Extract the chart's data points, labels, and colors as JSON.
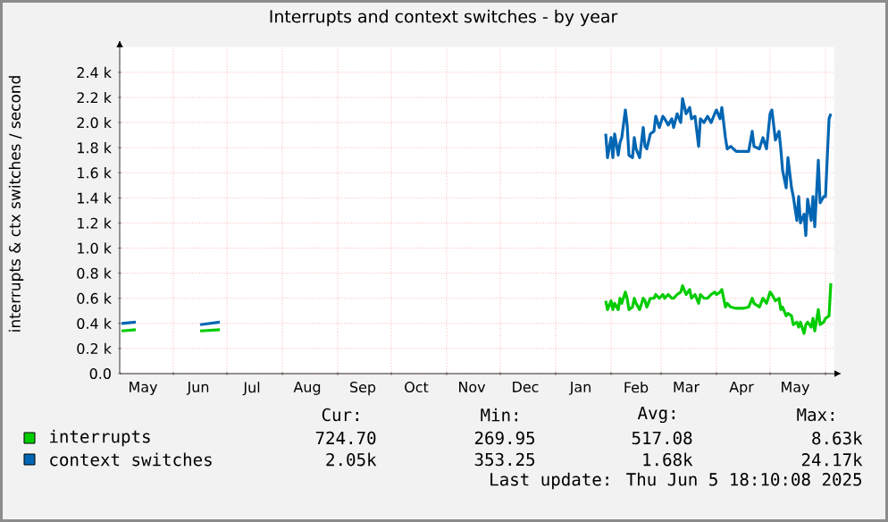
{
  "chart_data": {
    "type": "line",
    "title": "Interrupts and context switches - by year",
    "ylabel": "interrupts & ctx switches / second",
    "xlim": [
      "2024-05-02",
      "2025-06-06"
    ],
    "xticks": [
      {
        "value": "2024-05-15",
        "label": "May"
      },
      {
        "value": "2024-06-01",
        "label": null
      },
      {
        "value": "2024-06-15",
        "label": "Jun"
      },
      {
        "value": "2024-07-01",
        "label": null
      },
      {
        "value": "2024-07-15",
        "label": "Jul"
      },
      {
        "value": "2024-08-01",
        "label": null
      },
      {
        "value": "2024-08-15",
        "label": "Aug"
      },
      {
        "value": "2024-09-01",
        "label": null
      },
      {
        "value": "2024-09-15",
        "label": "Sep"
      },
      {
        "value": "2024-10-01",
        "label": null
      },
      {
        "value": "2024-10-15",
        "label": "Oct"
      },
      {
        "value": "2024-11-01",
        "label": null
      },
      {
        "value": "2024-11-15",
        "label": "Nov"
      },
      {
        "value": "2024-12-01",
        "label": null
      },
      {
        "value": "2024-12-15",
        "label": "Dec"
      },
      {
        "value": "2025-01-01",
        "label": null
      },
      {
        "value": "2025-01-15",
        "label": "Jan"
      },
      {
        "value": "2025-02-01",
        "label": null
      },
      {
        "value": "2025-02-15",
        "label": "Feb"
      },
      {
        "value": "2025-03-01",
        "label": null
      },
      {
        "value": "2025-03-15",
        "label": "Mar"
      },
      {
        "value": "2025-04-01",
        "label": null
      },
      {
        "value": "2025-04-15",
        "label": "Apr"
      },
      {
        "value": "2025-05-01",
        "label": null
      },
      {
        "value": "2025-05-15",
        "label": "May"
      },
      {
        "value": "2025-06-01",
        "label": null
      }
    ],
    "ylim": [
      0,
      2600
    ],
    "yticks": [
      {
        "value": 0,
        "label": "0.0"
      },
      {
        "value": 200,
        "label": "0.2 k"
      },
      {
        "value": 400,
        "label": "0.4 k"
      },
      {
        "value": 600,
        "label": "0.6 k"
      },
      {
        "value": 800,
        "label": "0.8 k"
      },
      {
        "value": 1000,
        "label": "1.0 k"
      },
      {
        "value": 1200,
        "label": "1.2 k"
      },
      {
        "value": 1400,
        "label": "1.4 k"
      },
      {
        "value": 1600,
        "label": "1.6 k"
      },
      {
        "value": 1800,
        "label": "1.8 k"
      },
      {
        "value": 2000,
        "label": "2.0 k"
      },
      {
        "value": 2200,
        "label": "2.2 k"
      },
      {
        "value": 2400,
        "label": "2.4 k"
      }
    ],
    "grid": true,
    "legend": "bottom",
    "marker": "none",
    "line_style": "solid",
    "x": [
      "2024-05-03",
      "2024-05-11",
      "2024-05-20",
      "2024-06-16",
      "2024-06-27",
      "2024-07-15",
      "2025-01-29",
      "2025-01-30",
      "2025-02-01",
      "2025-02-02",
      "2025-02-03",
      "2025-02-05",
      "2025-02-06",
      "2025-02-07",
      "2025-02-09",
      "2025-02-10",
      "2025-02-11",
      "2025-02-13",
      "2025-02-14",
      "2025-02-15",
      "2025-02-17",
      "2025-02-19",
      "2025-02-20",
      "2025-02-21",
      "2025-02-23",
      "2025-02-25",
      "2025-02-26",
      "2025-02-28",
      "2025-03-02",
      "2025-03-03",
      "2025-03-05",
      "2025-03-07",
      "2025-03-08",
      "2025-03-10",
      "2025-03-12",
      "2025-03-13",
      "2025-03-15",
      "2025-03-17",
      "2025-03-18",
      "2025-03-20",
      "2025-03-22",
      "2025-03-23",
      "2025-03-25",
      "2025-03-27",
      "2025-03-29",
      "2025-03-31",
      "2025-04-01",
      "2025-04-03",
      "2025-04-04",
      "2025-04-06",
      "2025-04-07",
      "2025-04-09",
      "2025-04-12",
      "2025-04-16",
      "2025-04-19",
      "2025-04-21",
      "2025-04-22",
      "2025-04-25",
      "2025-04-27",
      "2025-04-29",
      "2025-05-01",
      "2025-05-02",
      "2025-05-04",
      "2025-05-06",
      "2025-05-07",
      "2025-05-08",
      "2025-05-10",
      "2025-05-11",
      "2025-05-13",
      "2025-05-14",
      "2025-05-16",
      "2025-05-17",
      "2025-05-18",
      "2025-05-20",
      "2025-05-21",
      "2025-05-22",
      "2025-05-24",
      "2025-05-25",
      "2025-05-26",
      "2025-05-28",
      "2025-05-29",
      "2025-05-31",
      "2025-06-01",
      "2025-06-03",
      "2025-06-04"
    ],
    "series": [
      {
        "name": "interrupts",
        "color": "#00cc00",
        "values": [
          340,
          350,
          null,
          340,
          350,
          null,
          580,
          510,
          580,
          510,
          560,
          510,
          600,
          560,
          650,
          600,
          510,
          530,
          600,
          560,
          510,
          600,
          580,
          530,
          600,
          600,
          630,
          600,
          630,
          600,
          630,
          600,
          600,
          630,
          650,
          700,
          630,
          670,
          600,
          630,
          560,
          630,
          600,
          600,
          630,
          650,
          630,
          650,
          670,
          530,
          560,
          530,
          520,
          520,
          530,
          600,
          560,
          530,
          600,
          560,
          650,
          630,
          580,
          600,
          510,
          530,
          460,
          480,
          460,
          390,
          410,
          370,
          410,
          320,
          390,
          410,
          370,
          440,
          340,
          510,
          390,
          410,
          440,
          460,
          720
        ]
      },
      {
        "name": "context switches",
        "color": "#0066b3",
        "values": [
          400,
          410,
          null,
          390,
          410,
          null,
          1910,
          1720,
          1880,
          1720,
          1910,
          1740,
          1840,
          1880,
          2100,
          1980,
          1740,
          1720,
          1880,
          1790,
          1720,
          1960,
          1810,
          1790,
          1910,
          1930,
          2050,
          1960,
          2050,
          2030,
          1980,
          2030,
          1960,
          2070,
          2000,
          2190,
          2070,
          2120,
          2030,
          2050,
          1810,
          2030,
          2000,
          2050,
          2000,
          2070,
          2100,
          2030,
          2120,
          1880,
          1790,
          1810,
          1770,
          1770,
          1770,
          1930,
          1810,
          1790,
          1880,
          1790,
          2070,
          2100,
          1860,
          1930,
          1790,
          1620,
          1480,
          1720,
          1480,
          1410,
          1220,
          1410,
          1200,
          1270,
          1100,
          1390,
          1220,
          1410,
          1170,
          1700,
          1360,
          1410,
          1410,
          2030,
          2070
        ]
      }
    ],
    "annotations": [
      "Cur:",
      "Min:",
      "Avg:",
      "Max:",
      "724.70",
      "269.95",
      "517.08",
      "8.63k",
      "2.05k",
      "353.25",
      "1.68k",
      "24.17k",
      "Last update:  Thu Jun  5 18:10:08 2025"
    ]
  }
}
